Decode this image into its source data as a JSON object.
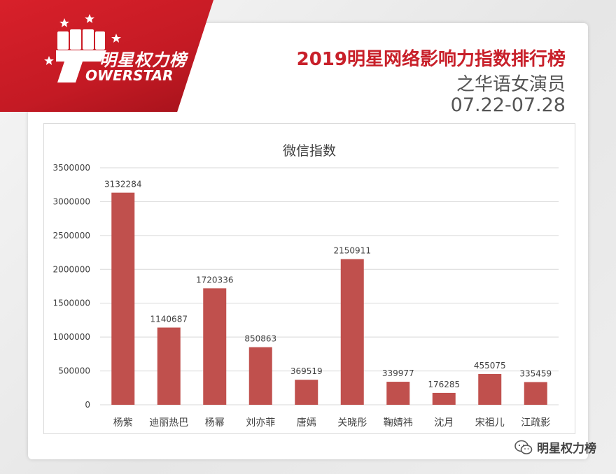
{
  "brand": {
    "logo_cn": "明星权力榜",
    "logo_en": "OWERSTAR",
    "logo_icon": "fist-icon"
  },
  "header": {
    "title": "2019明星网络影响力指数排行榜",
    "subtitle": "之华语女演员",
    "date_range": "07.22-07.28"
  },
  "footer": {
    "icon": "wechat-icon",
    "label": "明星权力榜"
  },
  "colors": {
    "brand_red": "#c8202a",
    "bar": "#c0504d",
    "grid": "#d9d9d9",
    "text": "#404040"
  },
  "chart_data": {
    "type": "bar",
    "title": "微信指数",
    "xlabel": "",
    "ylabel": "",
    "ylim": [
      0,
      3500000
    ],
    "yticks": [
      "0",
      "500000",
      "1000000",
      "1500000",
      "2000000",
      "2500000",
      "3000000",
      "3500000"
    ],
    "grid": true,
    "categories": [
      "杨紫",
      "迪丽热巴",
      "杨幂",
      "刘亦菲",
      "唐嫣",
      "关晓彤",
      "鞠婧祎",
      "沈月",
      "宋祖儿",
      "江疏影"
    ],
    "values": [
      3132284,
      1140687,
      1720336,
      850863,
      369519,
      2150911,
      339977,
      176285,
      455075,
      335459
    ],
    "value_labels": [
      "3132284",
      "1140687",
      "1720336",
      "850863",
      "369519",
      "2150911",
      "339977",
      "176285",
      "455075",
      "335459"
    ]
  }
}
